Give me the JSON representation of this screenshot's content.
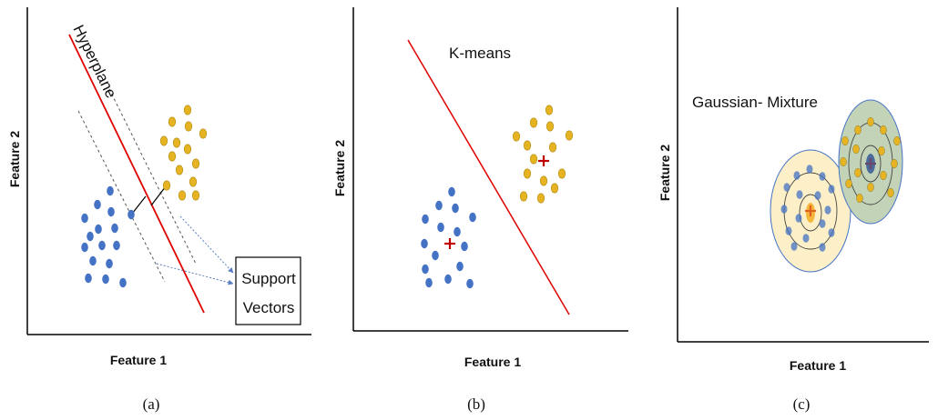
{
  "colors": {
    "blue_point": "#4472c4",
    "yellow_point": "#e6b422",
    "separator": "#e00000",
    "centroid_red": "#c00000",
    "gmm_yellow_fill": "#fdf0c8",
    "gmm_green_fill": "#c3d3b8",
    "axis": "#000000"
  },
  "panels": [
    {
      "caption": "(a)",
      "xlabel": "Feature  1",
      "ylabel": "Feature  2",
      "line_label": "Hyperplane",
      "box_label_line1": "Support",
      "box_label_line2": "Vectors"
    },
    {
      "caption": "(b)",
      "xlabel": "Feature  1",
      "ylabel": "Feature  2",
      "method_label": "K-means"
    },
    {
      "caption": "(c)",
      "xlabel": "Feature  1",
      "ylabel": "Feature  2",
      "method_label": "Gaussian- Mixture"
    }
  ]
}
